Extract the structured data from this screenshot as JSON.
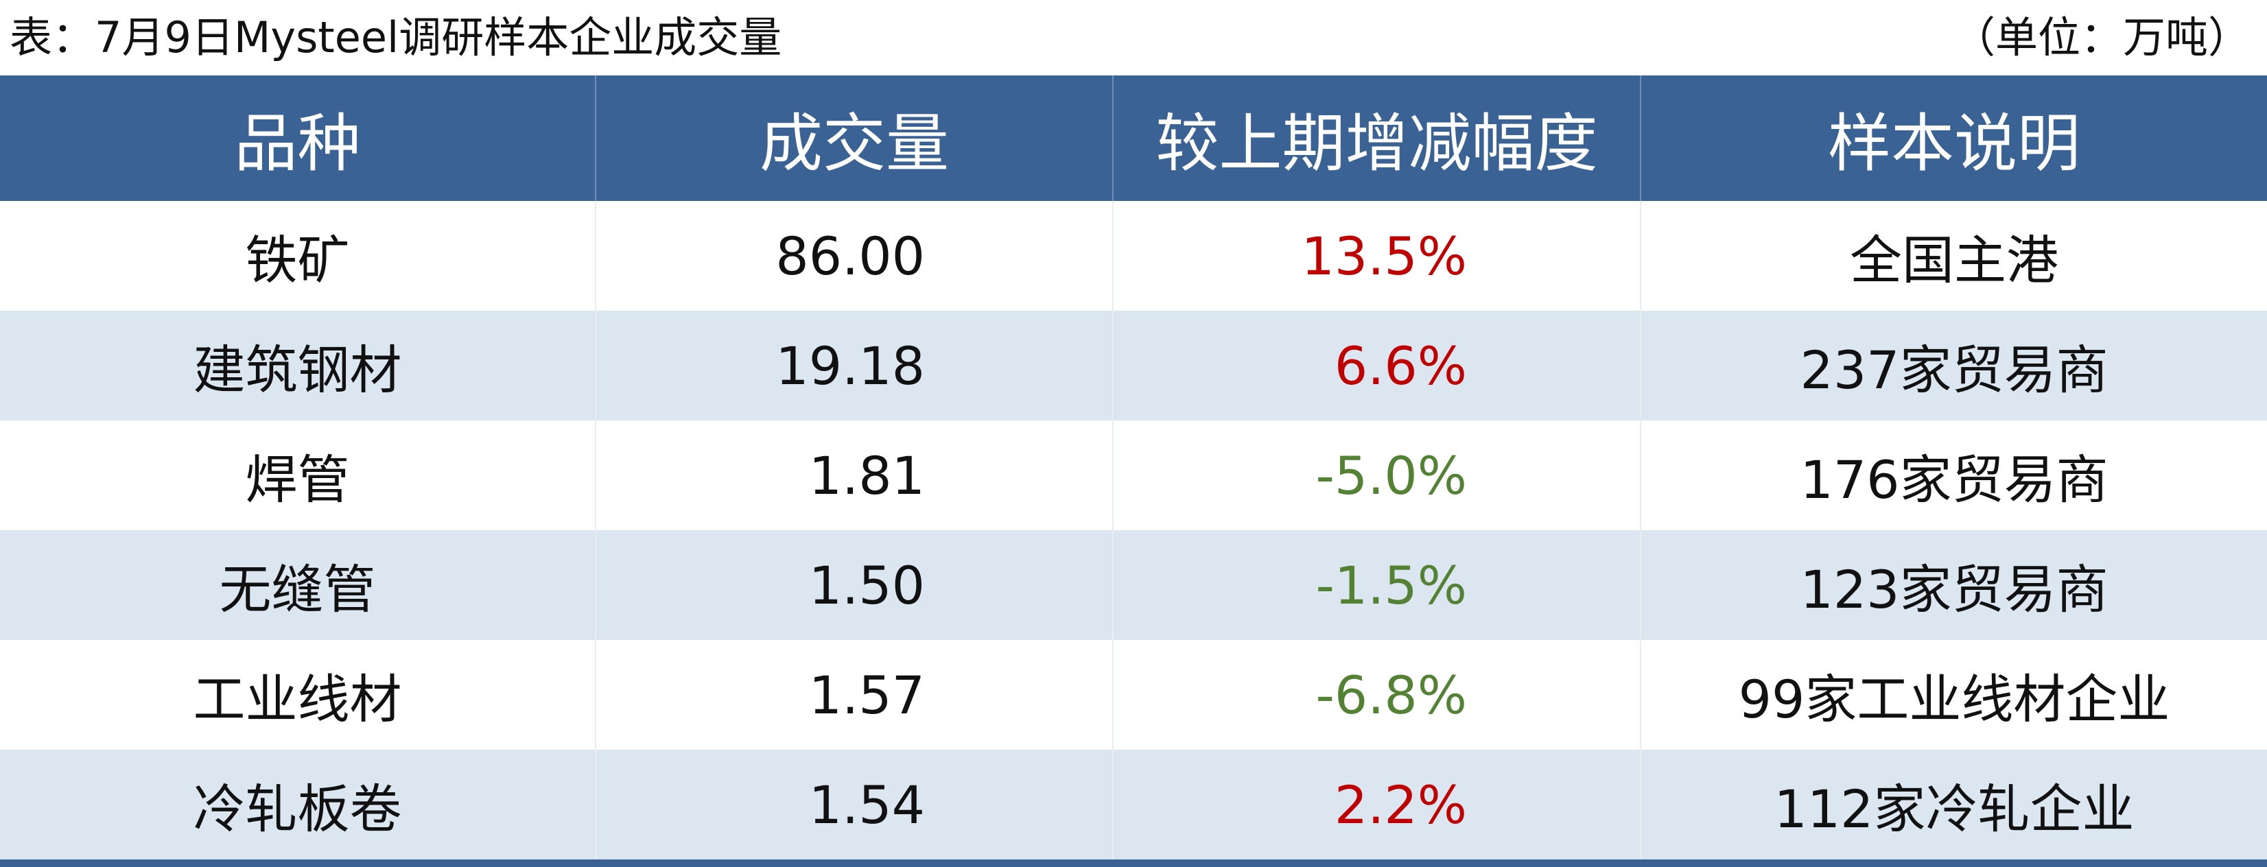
{
  "header": {
    "title": "表：7月9日Mysteel调研样本企业成交量",
    "unit": "（单位：万吨）"
  },
  "table": {
    "columns": [
      "品种",
      "成交量",
      "较上期增减幅度",
      "样本说明"
    ],
    "rows": [
      [
        "铁矿",
        "86.00",
        "13.5%",
        "全国主港"
      ],
      [
        "建筑钢材",
        "19.18",
        "6.6%",
        "237家贸易商"
      ],
      [
        "焊管",
        "1.81",
        "-5.0%",
        "176家贸易商"
      ],
      [
        "无缝管",
        "1.50",
        "-1.5%",
        "123家贸易商"
      ],
      [
        "工业线材",
        "1.57",
        "-6.8%",
        "99家工业线材企业"
      ],
      [
        "冷轧板卷",
        "1.54",
        "2.2%",
        "112家冷轧企业"
      ]
    ],
    "change_colors": [
      "#c00000",
      "#c00000",
      "#548235",
      "#548235",
      "#548235",
      "#c00000"
    ]
  }
}
